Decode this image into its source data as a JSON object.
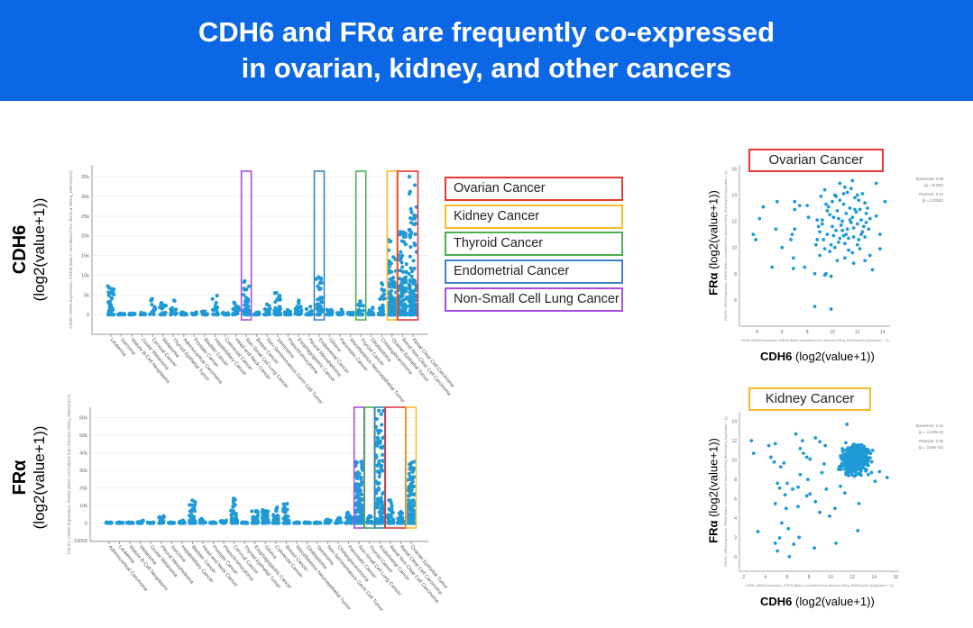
{
  "header": {
    "title_line1": "CDH6 and FRα are frequently co-expressed",
    "title_line2": "in ovarian, kidney, and other cancers"
  },
  "side_labels": {
    "top": {
      "gene": "CDH6",
      "unit": "(log2(value+1))"
    },
    "bottom": {
      "gene": "FRα",
      "unit": "(log2(value+1))"
    }
  },
  "legend": [
    {
      "label": "Ovarian Cancer",
      "color": "#e53935"
    },
    {
      "label": "Kidney Cancer",
      "color": "#f6bb2a"
    },
    {
      "label": "Thyroid Cancer",
      "color": "#4caf50"
    },
    {
      "label": "Endometrial Cancer",
      "color": "#3b82c4"
    },
    {
      "label": "Non-Small Cell Lung Cancer",
      "color": "#a64ee0"
    }
  ],
  "colors": {
    "dots": "#1f9ad6"
  },
  "scatter_axis_labels": {
    "y_gene": "FRα",
    "y_unit": " (log2(value+1))",
    "x_gene": "CDH6",
    "x_unit": " (log2(value+1))"
  },
  "chart_data": [
    {
      "type": "scatter",
      "panel": "CDH6 strip plot",
      "ylabel": "CDH6: mRNA Expression, RSEM (Batch normalized from Illumina HiSeq_RNASeqV2)",
      "ylim": [
        -5000,
        38000
      ],
      "yticks": [
        {
          "v": 0,
          "t": "0"
        },
        {
          "v": 5000,
          "t": "5k"
        },
        {
          "v": 10000,
          "t": "10k"
        },
        {
          "v": 15000,
          "t": "15k"
        },
        {
          "v": 20000,
          "t": "20k"
        },
        {
          "v": 25000,
          "t": "25k"
        },
        {
          "v": 30000,
          "t": "30k"
        },
        {
          "v": 35000,
          "t": "35k"
        }
      ],
      "grid": true,
      "categories": [
        "Leukemia",
        "Sarcoma",
        "Mature B-Cell Neoplasms",
        "Ocular Melanoma",
        "Cervical Cancer",
        "Melanoma",
        "Thyroid Epithelial Tumor",
        "Adrenocortical Carcinoma",
        "Prostate Cancer",
        "Bladder Cancer",
        "Hepatobiliary Cancer",
        "Colorectal Cancer",
        "Head and Neck Cancer",
        "Non-Small Cell Lung Cancer",
        "Breast Cancer",
        "Non-Seminomatous Germ Cell Tumor",
        "Seminoma",
        "Pheochromocytoma",
        "Esophagogastric Cancer",
        "Pleural Mesothelioma",
        "Endometrial Cancer",
        "Glioma",
        "Pancreatic Cancer",
        "Miscellaneous Neuroepithelial Tumor",
        "Thyroid Cancer",
        "Glioblastoma",
        "Cholangiocarcinoma",
        "Ovarian Epithelial Tumor",
        "Renal Non-Clear Cell Carcinoma",
        "Renal Clear Cell Carcinoma"
      ],
      "max_values": [
        7200,
        300,
        300,
        500,
        4000,
        3000,
        3600,
        600,
        600,
        800,
        4800,
        500,
        3100,
        8500,
        600,
        2600,
        5500,
        1200,
        3600,
        2000,
        9500,
        1200,
        1300,
        500,
        3400,
        1800,
        8000,
        19000,
        21000,
        35000
      ],
      "highlights": [
        {
          "color": "#a64ee0",
          "categories": [
            "Non-Small Cell Lung Cancer"
          ]
        },
        {
          "color": "#3b82c4",
          "categories": [
            "Endometrial Cancer"
          ]
        },
        {
          "color": "#4caf50",
          "categories": [
            "Thyroid Cancer"
          ]
        },
        {
          "color": "#f6bb2a",
          "categories": [
            "Ovarian Epithelial Tumor"
          ]
        },
        {
          "color": "#e53935",
          "categories": [
            "Renal Non-Clear Cell Carcinoma",
            "Renal Clear Cell Carcinoma"
          ]
        }
      ]
    },
    {
      "type": "scatter",
      "panel": "FRα strip plot",
      "ylabel": "FOLR1: mRNA Expression, RSEM (Batch normalized from Illumina HiSeq_RNASeqV2)",
      "ylim": [
        -10500,
        66000
      ],
      "yticks": [
        {
          "v": -10000,
          "t": "-10000"
        },
        {
          "v": 0,
          "t": "0"
        },
        {
          "v": 10000,
          "t": "10k"
        },
        {
          "v": 20000,
          "t": "20k"
        },
        {
          "v": 30000,
          "t": "30k"
        },
        {
          "v": 40000,
          "t": "40k"
        },
        {
          "v": 50000,
          "t": "50k"
        },
        {
          "v": 60000,
          "t": "60k"
        }
      ],
      "grid": true,
      "categories": [
        "Adrenocortical Carcinoma",
        "Leukemia",
        "Mature B-Cell Neoplasms",
        "Melanoma",
        "Ocular Melanoma",
        "Pleural Mesothelioma",
        "Sarcoma",
        "Hepatobiliary Cancer",
        "Bladder Cancer",
        "Head and Neck Cancer",
        "Prostate Cancer",
        "Pheochromocytoma",
        "Cervical Cancer",
        "Thyroid Epithelial Tumor",
        "Esophagogastric Cancer",
        "Glioma",
        "Colorectal Cancer",
        "Breast Cancer",
        "Miscellaneous Neuroepithelial Tumor",
        "Glioblastoma",
        "Seminoma",
        "Non-Seminomatous Germ Cell Tumor",
        "Cholangiocarcinoma",
        "Pancreatic Cancer",
        "Non-Small Cell Lung Cancer",
        "Thyroid Cancer",
        "Endometrial Cancer",
        "Renal Non-Clear Cell Carcinoma",
        "Renal Clear Cell Carcinoma",
        "Ovarian Epithelial Tumor"
      ],
      "max_values": [
        500,
        500,
        500,
        1500,
        500,
        4000,
        500,
        1500,
        13000,
        2500,
        500,
        1500,
        14000,
        500,
        7000,
        7500,
        9000,
        11000,
        500,
        500,
        500,
        2000,
        3000,
        6000,
        35000,
        4000,
        64000,
        13000,
        6500,
        35000
      ],
      "highlights": [
        {
          "color": "#a64ee0",
          "categories": [
            "Non-Small Cell Lung Cancer"
          ]
        },
        {
          "color": "#4caf50",
          "categories": [
            "Thyroid Cancer"
          ]
        },
        {
          "color": "#3b82c4",
          "categories": [
            "Endometrial Cancer"
          ]
        },
        {
          "color": "#e53935",
          "categories": [
            "Renal Non-Clear Cell Carcinoma",
            "Renal Clear Cell Carcinoma"
          ]
        },
        {
          "color": "#f6bb2a",
          "categories": [
            "Ovarian Epithelial Tumor"
          ]
        }
      ]
    },
    {
      "type": "scatter",
      "title": "Ovarian Cancer",
      "title_color": "#e53935",
      "xlabel": "CDH6: mRNA Expression, RSEM (Batch normalized from Illumina HiSeq_RNASeqV2) (log2(value + 1))",
      "ylabel": "FOLR1: mRNA Expression, RSEM (Batch normalized from Illumina HiSeq_RNASeqV2) (log2(value + 1))",
      "xlim": [
        2.6,
        14.6
      ],
      "ylim": [
        4,
        16.3
      ],
      "xticks": [
        4,
        6,
        8,
        10,
        12,
        14
      ],
      "yticks": [
        6,
        8,
        10,
        12,
        14,
        16
      ],
      "stats": [
        "Spearman: 0.08",
        "(p = 0.203)",
        "Pearson: 0.14",
        "(p = 0.0352)"
      ],
      "points": [
        [
          3.7,
          11.0
        ],
        [
          3.9,
          10.6
        ],
        [
          4.2,
          12.2
        ],
        [
          4.5,
          13.1
        ],
        [
          5.5,
          11.4
        ],
        [
          5.6,
          13.5
        ],
        [
          5.2,
          8.5
        ],
        [
          6.0,
          10.0
        ],
        [
          6.7,
          10.6
        ],
        [
          6.8,
          11.0
        ],
        [
          6.9,
          9.2
        ],
        [
          6.9,
          8.4
        ],
        [
          7.0,
          11.4
        ],
        [
          7.0,
          12.9
        ],
        [
          7.0,
          13.5
        ],
        [
          7.4,
          13.2
        ],
        [
          7.8,
          8.5
        ],
        [
          8.0,
          13.2
        ],
        [
          8.1,
          12.3
        ],
        [
          8.7,
          10.2
        ],
        [
          8.6,
          8.0
        ],
        [
          8.6,
          5.5
        ],
        [
          9.9,
          5.3
        ],
        [
          9.4,
          7.9
        ],
        [
          9.5,
          8.0
        ],
        [
          9.9,
          7.8
        ],
        [
          10.4,
          9.0
        ],
        [
          11.0,
          9.2
        ],
        [
          11.7,
          8.8
        ],
        [
          12.6,
          9.0
        ],
        [
          13.2,
          8.3
        ],
        [
          13.0,
          9.4
        ],
        [
          13.8,
          9.9
        ],
        [
          13.8,
          11.0
        ],
        [
          14.2,
          13.5
        ],
        [
          13.5,
          14.9
        ],
        [
          13.5,
          12.4
        ],
        [
          12.8,
          13.0
        ],
        [
          9.2,
          12.1
        ],
        [
          9.5,
          13.3
        ],
        [
          9.8,
          12.5
        ],
        [
          10.0,
          11.6
        ],
        [
          10.2,
          14.0
        ],
        [
          10.4,
          12.8
        ],
        [
          10.6,
          13.6
        ],
        [
          10.8,
          12.0
        ],
        [
          11.0,
          14.6
        ],
        [
          11.2,
          11.4
        ],
        [
          11.4,
          13.0
        ],
        [
          11.6,
          12.3
        ],
        [
          11.8,
          13.8
        ],
        [
          12.0,
          11.8
        ],
        [
          12.2,
          12.9
        ],
        [
          12.4,
          11.2
        ],
        [
          12.6,
          13.4
        ],
        [
          9.0,
          11.2
        ],
        [
          9.3,
          10.6
        ],
        [
          9.6,
          11.0
        ],
        [
          9.9,
          10.2
        ],
        [
          10.1,
          10.9
        ],
        [
          10.3,
          11.3
        ],
        [
          10.5,
          10.4
        ],
        [
          10.7,
          11.7
        ],
        [
          10.9,
          10.9
        ],
        [
          11.1,
          12.6
        ],
        [
          11.3,
          10.7
        ],
        [
          11.5,
          11.9
        ],
        [
          11.7,
          10.8
        ],
        [
          11.9,
          12.7
        ],
        [
          12.1,
          10.6
        ],
        [
          12.3,
          12.1
        ],
        [
          12.5,
          11.6
        ],
        [
          12.7,
          11.9
        ],
        [
          9.1,
          13.9
        ],
        [
          9.4,
          14.4
        ],
        [
          9.7,
          13.1
        ],
        [
          10.0,
          13.5
        ],
        [
          10.3,
          13.9
        ],
        [
          10.6,
          14.9
        ],
        [
          10.9,
          13.3
        ],
        [
          11.2,
          14.2
        ],
        [
          11.5,
          14.5
        ],
        [
          11.8,
          12.9
        ],
        [
          12.1,
          13.6
        ],
        [
          12.4,
          14.1
        ],
        [
          12.7,
          12.6
        ],
        [
          8.8,
          12.1
        ],
        [
          8.9,
          11.6
        ],
        [
          9.2,
          11.8
        ],
        [
          9.6,
          12.8
        ],
        [
          10.1,
          12.3
        ],
        [
          10.5,
          12.2
        ],
        [
          10.8,
          11.3
        ],
        [
          11.1,
          11.0
        ],
        [
          11.4,
          12.1
        ],
        [
          11.7,
          11.5
        ],
        [
          12.0,
          10.2
        ],
        [
          12.3,
          11.0
        ],
        [
          12.6,
          10.8
        ],
        [
          8.8,
          10.6
        ],
        [
          9.4,
          9.9
        ],
        [
          10.2,
          10.0
        ],
        [
          11.0,
          10.3
        ],
        [
          11.6,
          9.6
        ],
        [
          12.2,
          9.9
        ],
        [
          9.0,
          9.4
        ],
        [
          9.8,
          9.7
        ],
        [
          10.6,
          10.7
        ],
        [
          11.3,
          9.8
        ],
        [
          12.9,
          11.4
        ],
        [
          13.0,
          12.2
        ],
        [
          11.6,
          15.1
        ],
        [
          10.9,
          14.1
        ],
        [
          12.0,
          14.0
        ]
      ]
    },
    {
      "type": "scatter",
      "title": "Kidney Cancer",
      "title_color": "#f6bb2a",
      "xlabel": "CDH6: mRNA Expression, RSEM (Batch normalized from Illumina HiSeq_RNASeqV2) (log2(value + 1))",
      "ylabel": "FOLR1: mRNA Expression, RSEM (Batch normalized from Illumina HiSeq_RNASeqV2) (log2(value + 1))",
      "xlim": [
        1.6,
        16.3
      ],
      "ylim": [
        -1.5,
        15
      ],
      "xticks": [
        2,
        4,
        6,
        8,
        10,
        12,
        14,
        16
      ],
      "yticks": [
        0,
        2,
        4,
        6,
        8,
        10,
        12,
        14
      ],
      "stats": [
        "Spearman: 0.12",
        "(p = 4.330e-4)",
        "Pearson: 0.30",
        "(p = 3.66e-21)"
      ],
      "points": [
        [
          2.7,
          12.0
        ],
        [
          2.9,
          10.7
        ],
        [
          4.3,
          11.5
        ],
        [
          4.9,
          11.7
        ],
        [
          4.5,
          10.3
        ],
        [
          4.8,
          9.8
        ],
        [
          5.4,
          9.3
        ],
        [
          5.7,
          9.7
        ],
        [
          6.8,
          12.7
        ],
        [
          7.4,
          12.0
        ],
        [
          7.2,
          11.2
        ],
        [
          7.5,
          10.7
        ],
        [
          7.8,
          10.3
        ],
        [
          8.1,
          10.1
        ],
        [
          8.6,
          12.3
        ],
        [
          5.1,
          7.6
        ],
        [
          5.3,
          7.1
        ],
        [
          6.0,
          7.6
        ],
        [
          6.5,
          7.0
        ],
        [
          7.0,
          7.2
        ],
        [
          7.2,
          8.5
        ],
        [
          7.9,
          8.0
        ],
        [
          4.9,
          5.5
        ],
        [
          5.8,
          6.4
        ],
        [
          5.9,
          5.0
        ],
        [
          7.0,
          5.2
        ],
        [
          7.8,
          6.3
        ],
        [
          8.1,
          6.5
        ],
        [
          8.6,
          5.7
        ],
        [
          9.0,
          4.6
        ],
        [
          9.9,
          4.2
        ],
        [
          10.4,
          5.0
        ],
        [
          5.5,
          3.5
        ],
        [
          6.1,
          2.9
        ],
        [
          3.3,
          2.6
        ],
        [
          7.1,
          2.0
        ],
        [
          5.3,
          1.95
        ],
        [
          4.9,
          1.4
        ],
        [
          6.6,
          1.3
        ],
        [
          5.1,
          0.6
        ],
        [
          6.2,
          0.0
        ],
        [
          8.5,
          0.9
        ],
        [
          10.5,
          1.4
        ],
        [
          12.5,
          2.7
        ],
        [
          15.2,
          8.2
        ],
        [
          14.5,
          8.8
        ],
        [
          14.1,
          7.8
        ],
        [
          12.6,
          5.5
        ],
        [
          11.3,
          6.6
        ],
        [
          10.9,
          7.3
        ],
        [
          9.6,
          7.0
        ],
        [
          9.2,
          8.7
        ],
        [
          9.4,
          9.6
        ],
        [
          9.0,
          11.9
        ],
        [
          9.5,
          11.5
        ],
        [
          11.5,
          13.7
        ]
      ],
      "dense_cluster": {
        "center": [
          12.2,
          10.0
        ],
        "sd": [
          0.9,
          1.0
        ],
        "n": 450
      }
    }
  ]
}
